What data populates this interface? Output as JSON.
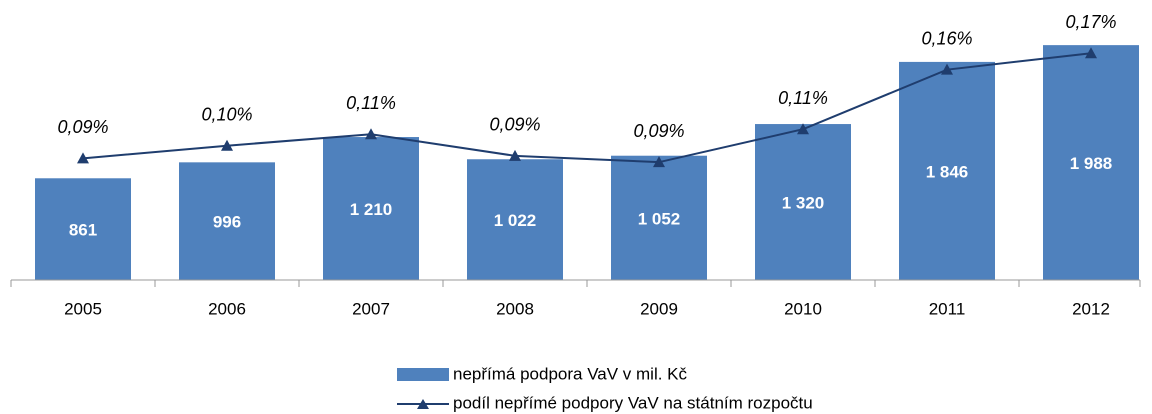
{
  "chart_data": {
    "type": "bar+line",
    "categories": [
      "2005",
      "2006",
      "2007",
      "2008",
      "2009",
      "2010",
      "2011",
      "2012"
    ],
    "ylim": [
      0,
      2370
    ],
    "y2lim": [
      -0.007,
      0.214
    ],
    "series": [
      {
        "name": "nepřímá podpora VaV v mil. Kč",
        "type": "bar",
        "color": "#4f81bd",
        "values": [
          861,
          996,
          1210,
          1022,
          1052,
          1320,
          1846,
          1988
        ],
        "value_labels": [
          "861",
          "996",
          "1 210",
          "1 022",
          "1 052",
          "1 320",
          "1 846",
          "1 988"
        ]
      },
      {
        "name": "podíl nepřímé podpory VaV na státním rozpočtu",
        "type": "line",
        "axis": "y2",
        "color": "#1f3d6e",
        "values": [
          0.089,
          0.099,
          0.108,
          0.091,
          0.086,
          0.112,
          0.159,
          0.172
        ],
        "value_labels": [
          "0,09%",
          "0,10%",
          "0,11%",
          "0,09%",
          "0,09%",
          "0,11%",
          "0,16%",
          "0,17%"
        ]
      }
    ]
  }
}
